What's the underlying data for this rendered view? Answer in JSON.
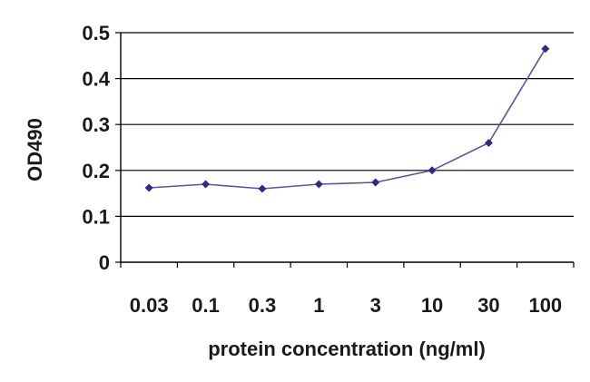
{
  "chart_data": {
    "type": "line",
    "title": "",
    "xlabel": "protein concentration (ng/ml)",
    "ylabel": "OD490",
    "categories": [
      "0.03",
      "0.1",
      "0.3",
      "1",
      "3",
      "10",
      "30",
      "100"
    ],
    "series": [
      {
        "name": "OD490",
        "values": [
          0.162,
          0.17,
          0.16,
          0.17,
          0.174,
          0.2,
          0.26,
          0.465
        ]
      }
    ],
    "ylim": [
      0,
      0.5
    ],
    "yticks": [
      "0",
      "0.1",
      "0.2",
      "0.3",
      "0.4",
      "0.5"
    ],
    "grid": true,
    "legend": "none",
    "colors": {
      "line": "#5555aa",
      "marker": "#2b2b88",
      "grid": "#000000",
      "axis": "#000000"
    }
  }
}
